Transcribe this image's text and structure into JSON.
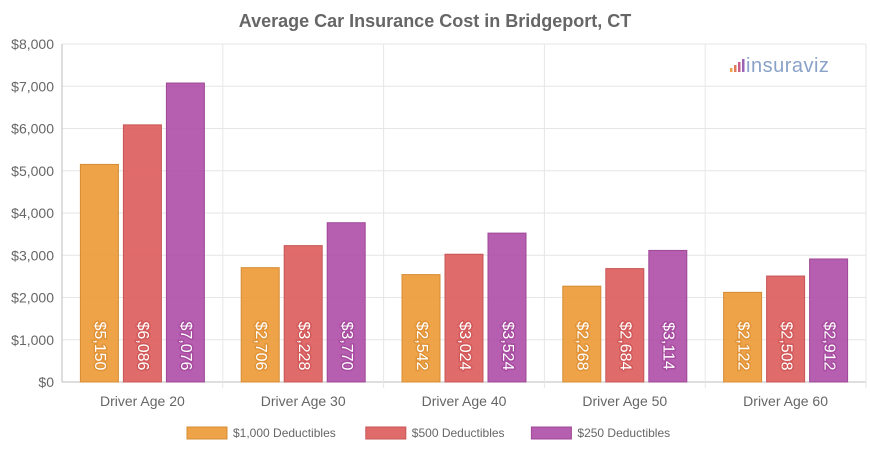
{
  "chart_data": {
    "type": "bar",
    "title": "Average Car Insurance Cost in Bridgeport, CT",
    "categories": [
      "Driver Age 20",
      "Driver Age 30",
      "Driver Age 40",
      "Driver Age 50",
      "Driver Age 60"
    ],
    "series": [
      {
        "name": "$1,000 Deductibles",
        "color": "#ed9b3a",
        "values": [
          5150,
          2706,
          2542,
          2268,
          2122
        ],
        "labels": [
          "$5,150",
          "$2,706",
          "$2,542",
          "$2,268",
          "$2,122"
        ]
      },
      {
        "name": "$500 Deductibles",
        "color": "#dd5e5e",
        "values": [
          6086,
          3228,
          3024,
          2684,
          2508
        ],
        "labels": [
          "$6,086",
          "$3,228",
          "$3,024",
          "$2,684",
          "$2,508"
        ]
      },
      {
        "name": "$250 Deductibles",
        "color": "#b050a8",
        "values": [
          7076,
          3770,
          3524,
          3114,
          2912
        ],
        "labels": [
          "$7,076",
          "$3,770",
          "$3,524",
          "$3,114",
          "$2,912"
        ]
      }
    ],
    "ylim": [
      0,
      8000
    ],
    "yticks": [
      0,
      1000,
      2000,
      3000,
      4000,
      5000,
      6000,
      7000,
      8000
    ],
    "ytick_labels": [
      "$0",
      "$1,000",
      "$2,000",
      "$3,000",
      "$4,000",
      "$5,000",
      "$6,000",
      "$7,000",
      "$8,000"
    ],
    "xlabel": "",
    "ylabel": "",
    "grid": true,
    "legend_position": "bottom"
  },
  "branding": {
    "logo_text": "insuraviz",
    "logo_color": "#8aa2c8"
  }
}
